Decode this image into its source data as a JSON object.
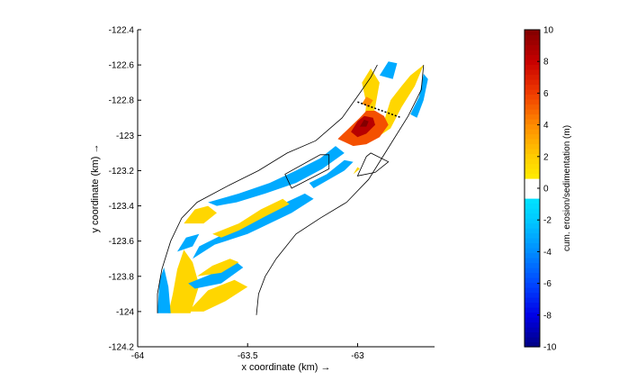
{
  "chart_data": {
    "type": "heatmap",
    "title": "",
    "xlabel": "x coordinate (km) →",
    "ylabel": "y coordinate (km) →",
    "xlim": [
      -64.0,
      -62.65
    ],
    "ylim": [
      -124.2,
      -122.4
    ],
    "xticks": [
      -64,
      -63.5,
      -63
    ],
    "xtick_labels": [
      "-64",
      "-63.5",
      "-63"
    ],
    "yticks": [
      -124.2,
      -124.0,
      -123.8,
      -123.6,
      -123.4,
      -123.2,
      -123.0,
      -122.8,
      -122.6,
      -122.4
    ],
    "ytick_labels": [
      "-124.2",
      "-124",
      "-123.8",
      "-123.6",
      "-123.4",
      "-123.2",
      "-123",
      "-122.8",
      "-122.6",
      "-122.4"
    ],
    "colorbar": {
      "label": "cum. erosion/sedimentation (m)",
      "range": [
        -10,
        10
      ],
      "ticks": [
        10,
        8,
        6,
        4,
        2,
        0,
        -2,
        -4,
        -6,
        -8,
        -10
      ],
      "tick_labels": [
        "10",
        "8",
        "6",
        "4",
        "2",
        "0",
        "-2",
        "-4",
        "-6",
        "-8",
        "-10"
      ],
      "white_band": [
        -0.5,
        0.5
      ]
    },
    "channel_banks": {
      "left_bank": [
        [
          -63.91,
          -124.01
        ],
        [
          -63.91,
          -123.9
        ],
        [
          -63.89,
          -123.76
        ],
        [
          -63.85,
          -123.6
        ],
        [
          -63.8,
          -123.47
        ],
        [
          -63.73,
          -123.38
        ],
        [
          -63.58,
          -123.28
        ],
        [
          -63.45,
          -123.2
        ],
        [
          -63.32,
          -123.1
        ],
        [
          -63.19,
          -123.03
        ],
        [
          -63.07,
          -122.9
        ],
        [
          -62.99,
          -122.76
        ],
        [
          -62.94,
          -122.67
        ],
        [
          -62.91,
          -122.6
        ]
      ],
      "right_bank": [
        [
          -63.46,
          -124.02
        ],
        [
          -63.45,
          -123.9
        ],
        [
          -63.42,
          -123.8
        ],
        [
          -63.37,
          -123.7
        ],
        [
          -63.28,
          -123.56
        ],
        [
          -63.17,
          -123.47
        ],
        [
          -63.05,
          -123.38
        ],
        [
          -62.95,
          -123.25
        ],
        [
          -62.86,
          -123.07
        ],
        [
          -62.77,
          -122.89
        ],
        [
          -62.71,
          -122.74
        ],
        [
          -62.7,
          -122.6
        ]
      ],
      "polygons": [
        [
          [
            -63.3,
            -123.3
          ],
          [
            -63.13,
            -123.19
          ],
          [
            -63.13,
            -123.11
          ],
          [
            -63.17,
            -123.11
          ],
          [
            -63.33,
            -123.22
          ]
        ],
        [
          [
            -63.0,
            -123.23
          ],
          [
            -62.92,
            -123.21
          ],
          [
            -62.86,
            -123.15
          ],
          [
            -62.94,
            -123.1
          ],
          [
            -62.96,
            -123.12
          ]
        ]
      ],
      "dashed_line": [
        [
          -63.0,
          -122.81
        ],
        [
          -62.8,
          -122.9
        ]
      ]
    },
    "patches": [
      {
        "value": 1.6,
        "points": [
          [
            -63.86,
            -124.01
          ],
          [
            -63.76,
            -124.01
          ],
          [
            -63.72,
            -123.85
          ],
          [
            -63.75,
            -123.72
          ],
          [
            -63.79,
            -123.65
          ],
          [
            -63.82,
            -123.76
          ],
          [
            -63.84,
            -123.9
          ]
        ]
      },
      {
        "value": -3.0,
        "points": [
          [
            -63.91,
            -124.01
          ],
          [
            -63.85,
            -124.01
          ],
          [
            -63.86,
            -123.86
          ],
          [
            -63.88,
            -123.75
          ],
          [
            -63.9,
            -123.82
          ]
        ]
      },
      {
        "value": 1.6,
        "points": [
          [
            -63.77,
            -124.0
          ],
          [
            -63.68,
            -123.88
          ],
          [
            -63.56,
            -123.82
          ],
          [
            -63.5,
            -123.86
          ],
          [
            -63.6,
            -123.94
          ],
          [
            -63.7,
            -124.0
          ]
        ]
      },
      {
        "value": -3.0,
        "points": [
          [
            -63.77,
            -123.84
          ],
          [
            -63.67,
            -123.79
          ],
          [
            -63.55,
            -123.72
          ],
          [
            -63.52,
            -123.75
          ],
          [
            -63.62,
            -123.84
          ],
          [
            -63.74,
            -123.87
          ]
        ]
      },
      {
        "value": 1.6,
        "points": [
          [
            -63.73,
            -123.8
          ],
          [
            -63.66,
            -123.74
          ],
          [
            -63.58,
            -123.7
          ],
          [
            -63.54,
            -123.72
          ],
          [
            -63.62,
            -123.78
          ]
        ]
      },
      {
        "value": -3.0,
        "points": [
          [
            -63.75,
            -123.7
          ],
          [
            -63.65,
            -123.62
          ],
          [
            -63.5,
            -123.56
          ],
          [
            -63.3,
            -123.44
          ],
          [
            -63.2,
            -123.36
          ],
          [
            -63.24,
            -123.33
          ],
          [
            -63.36,
            -123.4
          ],
          [
            -63.5,
            -123.49
          ],
          [
            -63.64,
            -123.58
          ],
          [
            -63.72,
            -123.63
          ]
        ]
      },
      {
        "value": -3.0,
        "points": [
          [
            -63.82,
            -123.66
          ],
          [
            -63.78,
            -123.58
          ],
          [
            -63.72,
            -123.56
          ],
          [
            -63.75,
            -123.63
          ]
        ]
      },
      {
        "value": 1.6,
        "points": [
          [
            -63.66,
            -123.56
          ],
          [
            -63.54,
            -123.5
          ],
          [
            -63.44,
            -123.42
          ],
          [
            -63.34,
            -123.36
          ],
          [
            -63.31,
            -123.39
          ],
          [
            -63.42,
            -123.46
          ],
          [
            -63.54,
            -123.54
          ],
          [
            -63.62,
            -123.58
          ]
        ]
      },
      {
        "value": 1.6,
        "points": [
          [
            -63.79,
            -123.5
          ],
          [
            -63.74,
            -123.42
          ],
          [
            -63.68,
            -123.4
          ],
          [
            -63.64,
            -123.44
          ],
          [
            -63.7,
            -123.5
          ]
        ]
      },
      {
        "value": -3.0,
        "points": [
          [
            -63.68,
            -123.38
          ],
          [
            -63.54,
            -123.33
          ],
          [
            -63.4,
            -123.27
          ],
          [
            -63.28,
            -123.2
          ],
          [
            -63.17,
            -123.13
          ],
          [
            -63.1,
            -123.06
          ],
          [
            -63.06,
            -123.1
          ],
          [
            -63.16,
            -123.19
          ],
          [
            -63.28,
            -123.27
          ],
          [
            -63.42,
            -123.33
          ],
          [
            -63.55,
            -123.38
          ],
          [
            -63.64,
            -123.4
          ]
        ]
      },
      {
        "value": -3.0,
        "points": [
          [
            -63.2,
            -123.3
          ],
          [
            -63.06,
            -123.2
          ],
          [
            -63.02,
            -123.15
          ],
          [
            -63.06,
            -123.14
          ],
          [
            -63.14,
            -123.22
          ],
          [
            -63.22,
            -123.27
          ]
        ]
      },
      {
        "value": 1.6,
        "points": [
          [
            -63.02,
            -123.22
          ],
          [
            -62.99,
            -123.19
          ],
          [
            -63.0,
            -123.18
          ]
        ]
      },
      {
        "value": 1.6,
        "points": [
          [
            -62.99,
            -123.04
          ],
          [
            -62.97,
            -122.92
          ],
          [
            -62.96,
            -122.82
          ],
          [
            -62.98,
            -122.7
          ],
          [
            -62.94,
            -122.62
          ],
          [
            -62.9,
            -122.7
          ],
          [
            -62.92,
            -122.84
          ],
          [
            -62.94,
            -122.96
          ]
        ]
      },
      {
        "value": 1.6,
        "points": [
          [
            -62.91,
            -123.01
          ],
          [
            -62.88,
            -122.92
          ],
          [
            -62.85,
            -122.8
          ],
          [
            -62.8,
            -122.72
          ],
          [
            -62.76,
            -122.66
          ],
          [
            -62.7,
            -122.6
          ],
          [
            -62.74,
            -122.72
          ],
          [
            -62.8,
            -122.84
          ],
          [
            -62.85,
            -122.96
          ]
        ]
      },
      {
        "value": -3.0,
        "points": [
          [
            -62.9,
            -122.66
          ],
          [
            -62.86,
            -122.58
          ],
          [
            -62.82,
            -122.59
          ],
          [
            -62.84,
            -122.68
          ]
        ]
      },
      {
        "value": -3.0,
        "points": [
          [
            -62.76,
            -122.88
          ],
          [
            -62.72,
            -122.78
          ],
          [
            -62.7,
            -122.65
          ],
          [
            -62.68,
            -122.68
          ],
          [
            -62.7,
            -122.8
          ],
          [
            -62.73,
            -122.9
          ]
        ]
      },
      {
        "value": 5.5,
        "points": [
          [
            -63.09,
            -123.02
          ],
          [
            -63.04,
            -122.96
          ],
          [
            -62.99,
            -122.9
          ],
          [
            -62.96,
            -122.86
          ],
          [
            -62.92,
            -122.86
          ],
          [
            -62.88,
            -122.89
          ],
          [
            -62.86,
            -122.94
          ],
          [
            -62.9,
            -123.01
          ],
          [
            -62.96,
            -123.05
          ],
          [
            -63.02,
            -123.06
          ]
        ]
      },
      {
        "value": 8.5,
        "points": [
          [
            -63.03,
            -122.98
          ],
          [
            -63.0,
            -122.92
          ],
          [
            -62.97,
            -122.89
          ],
          [
            -62.93,
            -122.9
          ],
          [
            -62.92,
            -122.94
          ],
          [
            -62.96,
            -122.99
          ],
          [
            -63.0,
            -123.01
          ]
        ]
      },
      {
        "value": 10.0,
        "points": [
          [
            -62.99,
            -122.95
          ],
          [
            -62.97,
            -122.91
          ],
          [
            -62.95,
            -122.92
          ],
          [
            -62.96,
            -122.95
          ]
        ]
      },
      {
        "value": 4.0,
        "points": [
          [
            -62.98,
            -122.82
          ],
          [
            -62.96,
            -122.78
          ],
          [
            -62.93,
            -122.8
          ],
          [
            -62.95,
            -122.84
          ]
        ]
      }
    ]
  }
}
